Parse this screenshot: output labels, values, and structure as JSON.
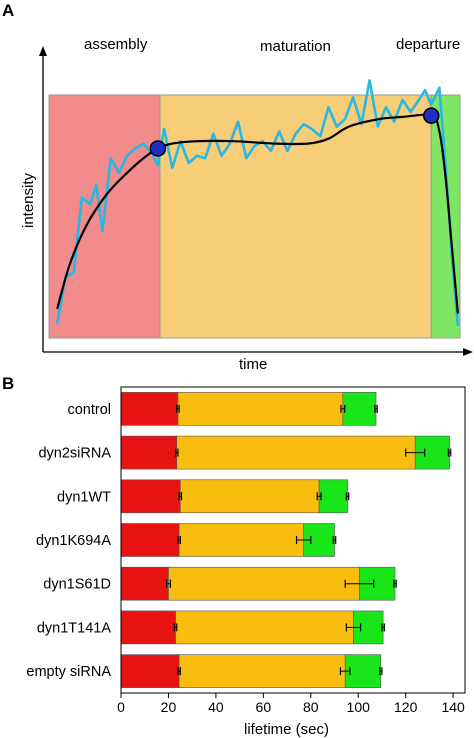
{
  "panels": {
    "a": {
      "letter": "A",
      "phases": [
        "assembly",
        "maturation",
        "departure"
      ],
      "xlabel": "time",
      "ylabel": "intensity",
      "colors": {
        "assembly": "#f28b8b",
        "maturation": "#f7cd78",
        "departure": "#7fe663",
        "trace": "#27b8e3",
        "fit": "#000000",
        "marker": "#1f2fc4"
      }
    },
    "b": {
      "letter": "B"
    }
  },
  "chart_data": [
    {
      "type": "line",
      "panel": "A",
      "title": "",
      "xlabel": "time",
      "ylabel": "intensity",
      "phases": [
        {
          "name": "assembly",
          "color": "#f28b8b",
          "x_range": [
            0.0,
            0.27
          ]
        },
        {
          "name": "maturation",
          "color": "#f7cd78",
          "x_range": [
            0.27,
            0.93
          ]
        },
        {
          "name": "departure",
          "color": "#7fe663",
          "x_range": [
            0.93,
            1.0
          ]
        }
      ],
      "series": [
        {
          "color": "#27b8e3",
          "x": [
            0.02,
            0.04,
            0.06,
            0.08,
            0.1,
            0.115,
            0.13,
            0.15,
            0.17,
            0.19,
            0.21,
            0.23,
            0.25,
            0.265,
            0.28,
            0.3,
            0.32,
            0.34,
            0.36,
            0.38,
            0.4,
            0.42,
            0.44,
            0.46,
            0.48,
            0.5,
            0.52,
            0.54,
            0.56,
            0.58,
            0.6,
            0.62,
            0.64,
            0.66,
            0.68,
            0.7,
            0.72,
            0.74,
            0.76,
            0.78,
            0.8,
            0.82,
            0.84,
            0.86,
            0.88,
            0.9,
            0.915,
            0.93,
            0.95,
            0.965,
            0.98,
            0.995
          ],
          "y": [
            0.06,
            0.25,
            0.27,
            0.58,
            0.55,
            0.63,
            0.44,
            0.74,
            0.68,
            0.75,
            0.78,
            0.8,
            0.76,
            0.71,
            0.86,
            0.7,
            0.81,
            0.72,
            0.75,
            0.74,
            0.84,
            0.75,
            0.8,
            0.89,
            0.74,
            0.79,
            0.81,
            0.77,
            0.85,
            0.77,
            0.84,
            0.88,
            0.86,
            0.83,
            0.95,
            0.87,
            0.9,
            0.99,
            0.88,
            1.06,
            0.87,
            0.95,
            0.89,
            0.98,
            0.93,
            0.98,
            1.02,
            0.96,
            1.03,
            0.71,
            0.34,
            0.05
          ]
        },
        {
          "color": "#000000",
          "x": [
            0.02,
            0.05,
            0.09,
            0.14,
            0.19,
            0.23,
            0.265,
            0.3,
            0.36,
            0.45,
            0.55,
            0.63,
            0.68,
            0.73,
            0.8,
            0.86,
            0.93,
            0.95,
            0.965,
            0.98,
            0.995
          ],
          "y": [
            0.12,
            0.3,
            0.46,
            0.59,
            0.68,
            0.74,
            0.78,
            0.8,
            0.81,
            0.81,
            0.8,
            0.8,
            0.82,
            0.87,
            0.9,
            0.91,
            0.915,
            0.85,
            0.66,
            0.38,
            0.1
          ]
        }
      ],
      "markers": [
        {
          "x": 0.265,
          "y": 0.78
        },
        {
          "x": 0.93,
          "y": 0.915
        }
      ]
    },
    {
      "type": "bar",
      "panel": "B",
      "stacked": true,
      "orientation": "horizontal",
      "xlabel": "lifetime (sec)",
      "ylabel": "",
      "xlim": [
        0,
        145
      ],
      "xticks": [
        0,
        20,
        40,
        60,
        80,
        100,
        120,
        140
      ],
      "categories": [
        "control",
        "dyn2siRNA",
        "dyn1WT",
        "dyn1K694A",
        "dyn1S61D",
        "dyn1T141A",
        "empty siRNA"
      ],
      "series": [
        {
          "color": "#e81313",
          "values": [
            24,
            23.5,
            25,
            24.5,
            20,
            23,
            24.5
          ],
          "errors": [
            0.5,
            0.5,
            0.5,
            0.5,
            0.8,
            0.5,
            0.5
          ]
        },
        {
          "color": "#f8bd0e",
          "values": [
            69.5,
            100.5,
            58.5,
            52.5,
            80.5,
            75,
            70
          ],
          "errors": [
            0.8,
            4.0,
            0.8,
            3.0,
            6.0,
            3.0,
            2.0
          ]
        },
        {
          "color": "#19e619",
          "values": [
            14,
            14.5,
            12,
            13,
            15,
            12.5,
            15
          ],
          "errors": [
            0.5,
            0.5,
            0.5,
            0.5,
            0.5,
            0.5,
            0.5
          ]
        }
      ]
    }
  ]
}
